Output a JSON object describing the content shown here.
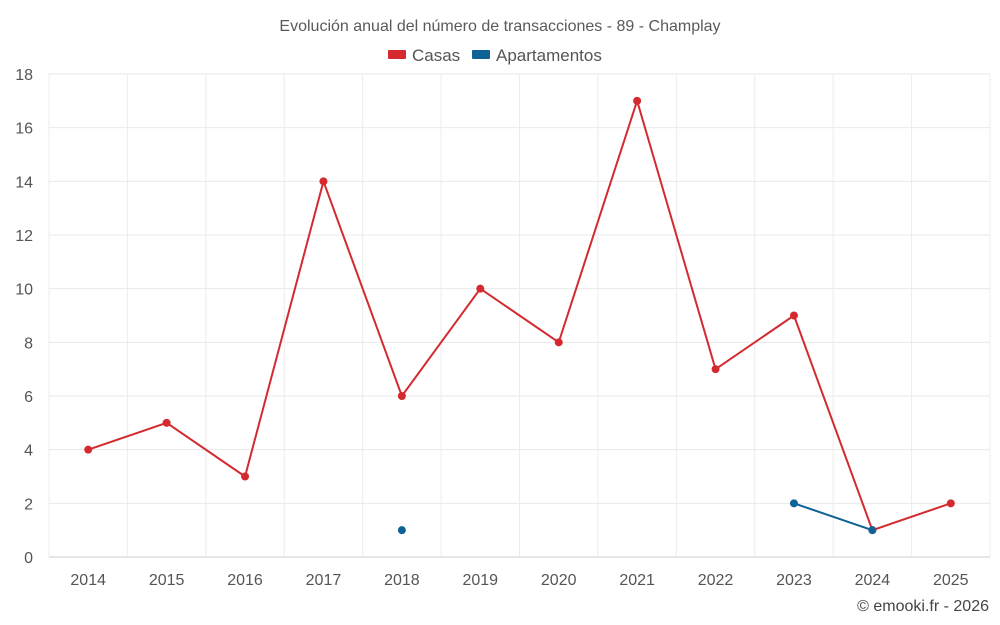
{
  "chart_data": {
    "type": "line",
    "title": "Evolución anual del número de transacciones - 89 - Champlay",
    "categories": [
      "2014",
      "2015",
      "2016",
      "2017",
      "2018",
      "2019",
      "2020",
      "2021",
      "2022",
      "2023",
      "2024",
      "2025"
    ],
    "ylim": [
      0,
      18
    ],
    "yticks": [
      0,
      2,
      4,
      6,
      8,
      10,
      12,
      14,
      16,
      18
    ],
    "grid": true,
    "legend_position": "top-center",
    "xlabel": "",
    "ylabel": "",
    "series": [
      {
        "name": "Casas",
        "color": "#d42a2f",
        "values": [
          4,
          5,
          3,
          14,
          6,
          10,
          8,
          17,
          7,
          9,
          1,
          2
        ]
      },
      {
        "name": "Apartamentos",
        "color": "#0f6296",
        "values": [
          null,
          null,
          null,
          null,
          1,
          null,
          null,
          null,
          null,
          2,
          1,
          null
        ]
      }
    ],
    "credit": "© emooki.fr - 2026"
  }
}
